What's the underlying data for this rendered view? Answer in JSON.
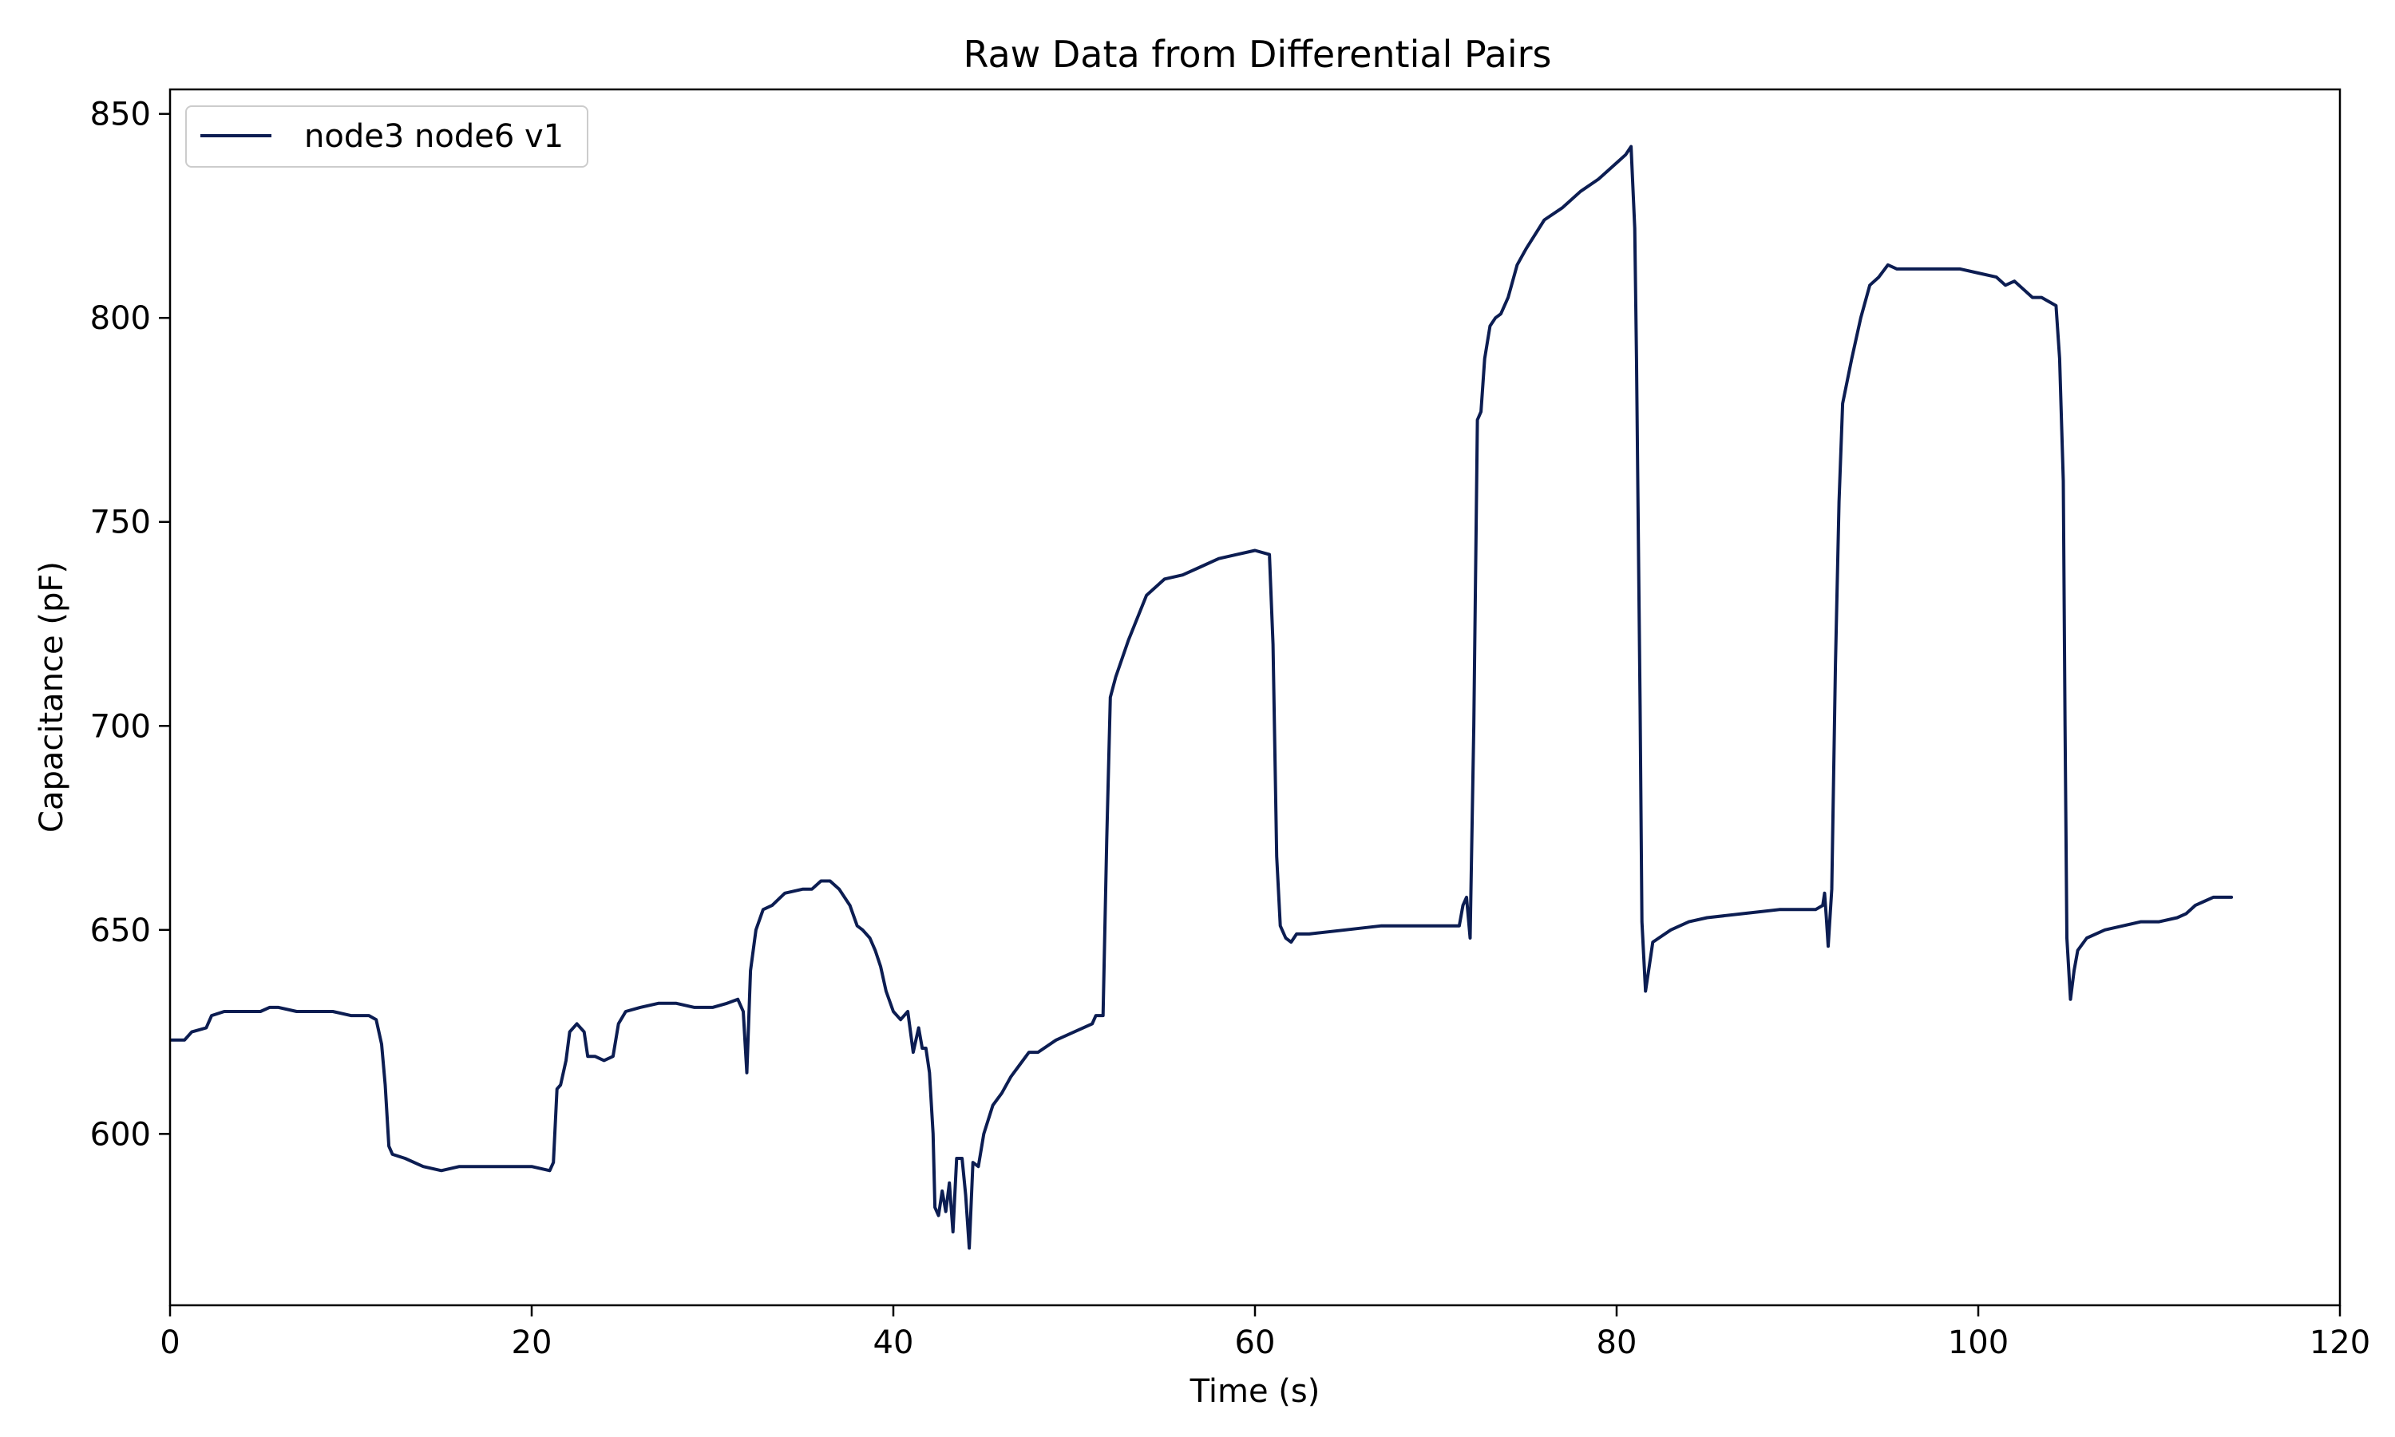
{
  "chart_data": {
    "type": "line",
    "title": "Raw Data from Differential Pairs",
    "xlabel": "Time (s)",
    "ylabel": "Capacitance (pF)",
    "xlim": [
      0,
      120
    ],
    "ylim": [
      558,
      856
    ],
    "xticks": [
      0,
      20,
      40,
      60,
      80,
      100,
      120
    ],
    "yticks": [
      600,
      650,
      700,
      750,
      800,
      850
    ],
    "grid": false,
    "legend": {
      "placement": "top-left",
      "entries": [
        "node3 node6 v1"
      ]
    },
    "series": [
      {
        "name": "node3 node6 v1",
        "color": "#0c1d52",
        "points": [
          [
            0,
            623
          ],
          [
            0.8,
            623
          ],
          [
            1.2,
            625
          ],
          [
            2,
            626
          ],
          [
            2.3,
            629
          ],
          [
            3,
            630
          ],
          [
            4,
            630
          ],
          [
            5,
            630
          ],
          [
            5.5,
            631
          ],
          [
            6,
            631
          ],
          [
            7,
            630
          ],
          [
            8,
            630
          ],
          [
            9,
            630
          ],
          [
            10,
            629
          ],
          [
            11,
            629
          ],
          [
            11.4,
            628
          ],
          [
            11.7,
            622
          ],
          [
            11.9,
            612
          ],
          [
            12.1,
            597
          ],
          [
            12.3,
            595
          ],
          [
            13,
            594
          ],
          [
            14,
            592
          ],
          [
            15,
            591
          ],
          [
            16,
            592
          ],
          [
            17,
            592
          ],
          [
            18,
            592
          ],
          [
            19,
            592
          ],
          [
            20,
            592
          ],
          [
            21,
            591
          ],
          [
            21.2,
            593
          ],
          [
            21.4,
            611
          ],
          [
            21.6,
            612
          ],
          [
            21.9,
            618
          ],
          [
            22.1,
            625
          ],
          [
            22.5,
            627
          ],
          [
            22.9,
            625
          ],
          [
            23.1,
            619
          ],
          [
            23.5,
            619
          ],
          [
            24,
            618
          ],
          [
            24.5,
            619
          ],
          [
            24.8,
            627
          ],
          [
            25.2,
            630
          ],
          [
            26,
            631
          ],
          [
            27,
            632
          ],
          [
            28,
            632
          ],
          [
            29,
            631
          ],
          [
            30,
            631
          ],
          [
            30.8,
            632
          ],
          [
            31.4,
            633
          ],
          [
            31.7,
            630
          ],
          [
            31.9,
            615
          ],
          [
            32.1,
            640
          ],
          [
            32.4,
            650
          ],
          [
            32.8,
            655
          ],
          [
            33.3,
            656
          ],
          [
            34,
            659
          ],
          [
            35,
            660
          ],
          [
            35.5,
            660
          ],
          [
            36,
            662
          ],
          [
            36.5,
            662
          ],
          [
            37,
            660
          ],
          [
            37.6,
            656
          ],
          [
            38,
            651
          ],
          [
            38.3,
            650
          ],
          [
            38.7,
            648
          ],
          [
            39,
            645
          ],
          [
            39.3,
            641
          ],
          [
            39.6,
            635
          ],
          [
            40,
            630
          ],
          [
            40.4,
            628
          ],
          [
            40.8,
            630
          ],
          [
            41.1,
            620
          ],
          [
            41.4,
            626
          ],
          [
            41.6,
            621
          ],
          [
            41.8,
            621
          ],
          [
            42,
            615
          ],
          [
            42.2,
            600
          ],
          [
            42.3,
            582
          ],
          [
            42.5,
            580
          ],
          [
            42.7,
            586
          ],
          [
            42.9,
            581
          ],
          [
            43.1,
            588
          ],
          [
            43.3,
            576
          ],
          [
            43.5,
            594
          ],
          [
            43.8,
            594
          ],
          [
            44,
            585
          ],
          [
            44.2,
            572
          ],
          [
            44.4,
            593
          ],
          [
            44.7,
            592
          ],
          [
            45,
            600
          ],
          [
            45.5,
            607
          ],
          [
            46,
            610
          ],
          [
            46.5,
            614
          ],
          [
            47,
            617
          ],
          [
            47.5,
            620
          ],
          [
            48,
            620
          ],
          [
            49,
            623
          ],
          [
            50,
            625
          ],
          [
            51,
            627
          ],
          [
            51.2,
            629
          ],
          [
            51.6,
            629
          ],
          [
            51.8,
            672
          ],
          [
            52,
            707
          ],
          [
            52.3,
            712
          ],
          [
            53,
            721
          ],
          [
            54,
            732
          ],
          [
            55,
            736
          ],
          [
            56,
            737
          ],
          [
            57,
            739
          ],
          [
            58,
            741
          ],
          [
            59,
            742
          ],
          [
            60,
            743
          ],
          [
            60.8,
            742
          ],
          [
            61,
            720
          ],
          [
            61.2,
            668
          ],
          [
            61.4,
            651
          ],
          [
            61.7,
            648
          ],
          [
            62,
            647
          ],
          [
            62.3,
            649
          ],
          [
            63,
            649
          ],
          [
            65,
            650
          ],
          [
            67,
            651
          ],
          [
            69,
            651
          ],
          [
            70.5,
            651
          ],
          [
            71.3,
            651
          ],
          [
            71.5,
            656
          ],
          [
            71.7,
            658
          ],
          [
            71.9,
            648
          ],
          [
            72.1,
            700
          ],
          [
            72.3,
            775
          ],
          [
            72.5,
            777
          ],
          [
            72.7,
            790
          ],
          [
            73,
            798
          ],
          [
            73.3,
            800
          ],
          [
            73.6,
            801
          ],
          [
            74,
            805
          ],
          [
            74.5,
            813
          ],
          [
            75,
            817
          ],
          [
            76,
            824
          ],
          [
            77,
            827
          ],
          [
            78,
            831
          ],
          [
            79,
            834
          ],
          [
            80,
            838
          ],
          [
            80.5,
            840
          ],
          [
            80.8,
            842
          ],
          [
            81,
            822
          ],
          [
            81.1,
            790
          ],
          [
            81.3,
            705
          ],
          [
            81.4,
            652
          ],
          [
            81.6,
            635
          ],
          [
            81.8,
            641
          ],
          [
            82,
            647
          ],
          [
            83,
            650
          ],
          [
            84,
            652
          ],
          [
            85,
            653
          ],
          [
            87,
            654
          ],
          [
            89,
            655
          ],
          [
            91,
            655
          ],
          [
            91.4,
            656
          ],
          [
            91.5,
            659
          ],
          [
            91.6,
            653
          ],
          [
            91.7,
            646
          ],
          [
            91.9,
            660
          ],
          [
            92.1,
            715
          ],
          [
            92.3,
            755
          ],
          [
            92.5,
            779
          ],
          [
            93,
            790
          ],
          [
            93.5,
            800
          ],
          [
            94,
            808
          ],
          [
            94.5,
            810
          ],
          [
            95,
            813
          ],
          [
            95.5,
            812
          ],
          [
            96,
            812
          ],
          [
            97,
            812
          ],
          [
            98,
            812
          ],
          [
            99,
            812
          ],
          [
            100,
            811
          ],
          [
            101,
            810
          ],
          [
            101.5,
            808
          ],
          [
            102,
            809
          ],
          [
            103,
            805
          ],
          [
            103.5,
            805
          ],
          [
            104.3,
            803
          ],
          [
            104.5,
            790
          ],
          [
            104.7,
            760
          ],
          [
            104.8,
            700
          ],
          [
            104.9,
            648
          ],
          [
            105.1,
            633
          ],
          [
            105.3,
            640
          ],
          [
            105.5,
            645
          ],
          [
            106,
            648
          ],
          [
            107,
            650
          ],
          [
            108,
            651
          ],
          [
            109,
            652
          ],
          [
            110,
            652
          ],
          [
            111,
            653
          ],
          [
            111.5,
            654
          ],
          [
            112,
            656
          ],
          [
            112.5,
            657
          ],
          [
            113,
            658
          ],
          [
            114,
            658
          ]
        ]
      }
    ]
  }
}
